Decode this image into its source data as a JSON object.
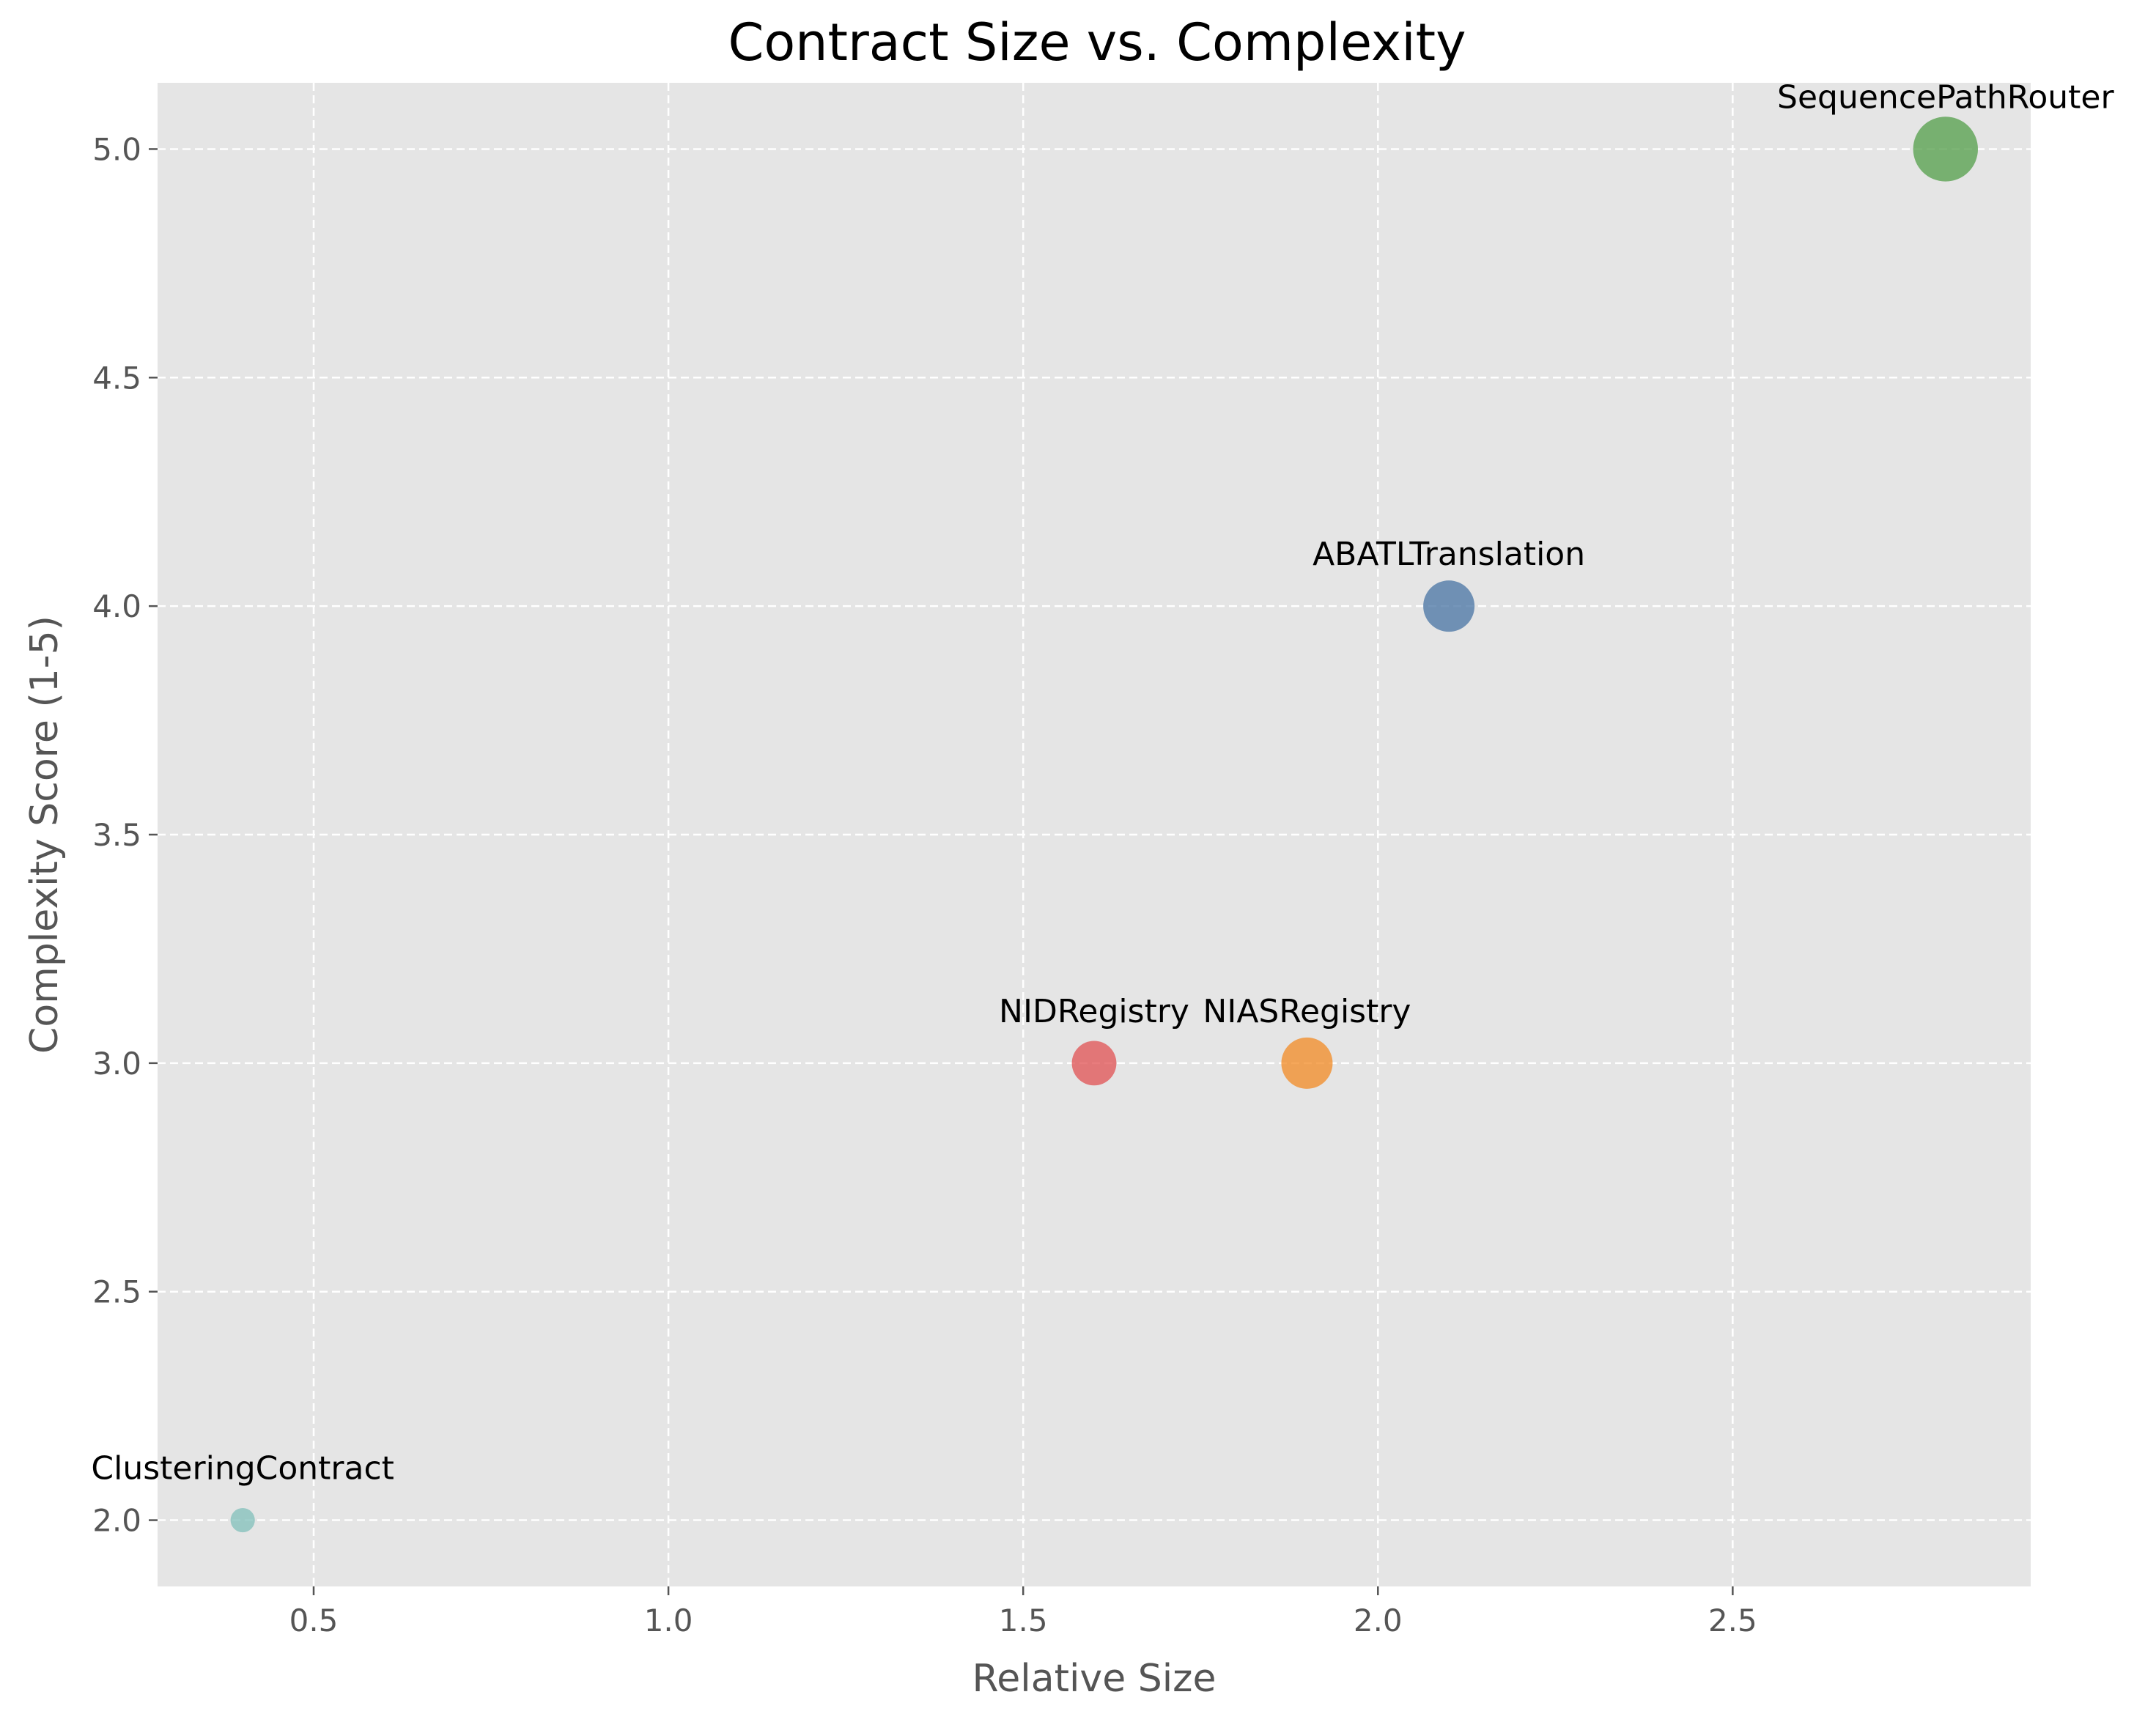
{
  "chart_data": {
    "type": "scatter",
    "title": "Contract Size vs. Complexity",
    "xlabel": "Relative Size",
    "ylabel": "Complexity Score (1-5)",
    "xlim": [
      0.28,
      2.92
    ],
    "ylim": [
      1.855,
      5.145
    ],
    "xticks": [
      "0.5",
      "1.0",
      "1.5",
      "2.0",
      "2.5"
    ],
    "yticks": [
      "2.0",
      "2.5",
      "3.0",
      "3.5",
      "4.0",
      "4.5",
      "5.0"
    ],
    "grid": true,
    "background_color": "#e5e5e5",
    "points": [
      {
        "name": "ClusteringContract",
        "x": 0.4,
        "y": 2.0,
        "size": 1,
        "color": "#85c1bd"
      },
      {
        "name": "NIDRegistry",
        "x": 1.6,
        "y": 3.0,
        "size": 4,
        "color": "#e15759"
      },
      {
        "name": "NIASRegistry",
        "x": 1.9,
        "y": 3.0,
        "size": 5,
        "color": "#f28e2b"
      },
      {
        "name": "ABATLTranslation",
        "x": 2.1,
        "y": 4.0,
        "size": 5,
        "color": "#4e79a7"
      },
      {
        "name": "SequencePathRouter",
        "x": 2.8,
        "y": 5.0,
        "size": 7,
        "color": "#59a14f"
      }
    ]
  }
}
